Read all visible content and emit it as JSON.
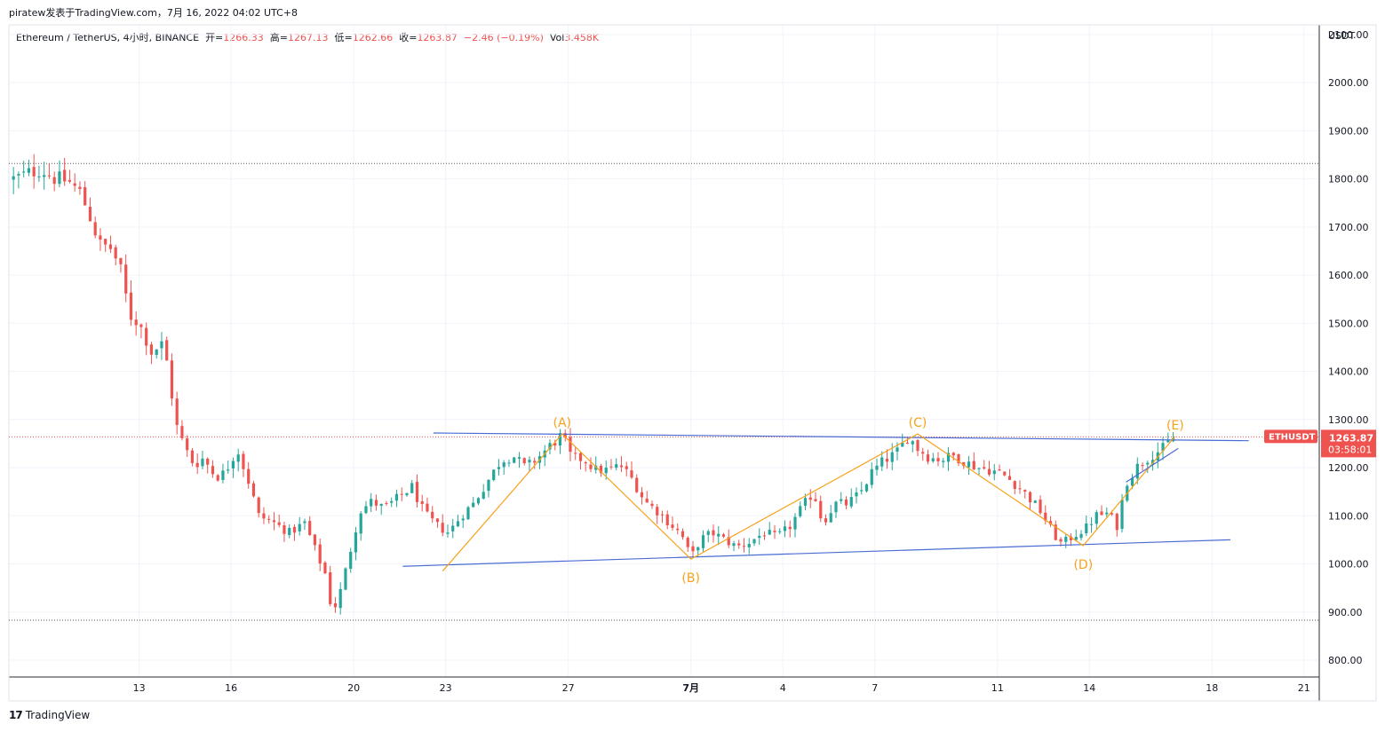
{
  "header": {
    "publish_line": "piratew发表于TradingView.com，7月 16, 2022 04:02 UTC+8"
  },
  "legend": {
    "symbol": "Ethereum / TetherUS, 4小时, BINANCE",
    "open_label": "开=",
    "open_value": "1266.33",
    "high_label": "高=",
    "high_value": "1267.13",
    "low_label": "低=",
    "low_value": "1262.66",
    "close_label": "收=",
    "close_value": "1263.87",
    "change": "−2.46 (−0.19%)",
    "vol_label": "Vol",
    "vol_value": "3.458K"
  },
  "footer": {
    "logo": "17",
    "brand": "TradingView"
  },
  "colors": {
    "up": "#26a69a",
    "down": "#ef5350",
    "wave": "#f7a21b",
    "trendline": "#4a6cd4",
    "grid": "#f0f3fa",
    "price_label_bg": "#ef5350"
  },
  "chart_data": {
    "type": "candlestick",
    "symbol": "ETHUSDT",
    "currency": "USDT",
    "y_ticks": [
      "2100.00",
      "2000.00",
      "1900.00",
      "1800.00",
      "1700.00",
      "1600.00",
      "1500.00",
      "1400.00",
      "1300.00",
      "1200.00",
      "1100.00",
      "1000.00",
      "900.00",
      "800.00"
    ],
    "y_tick_values": [
      2100,
      2000,
      1900,
      1800,
      1700,
      1600,
      1500,
      1400,
      1300,
      1200,
      1100,
      1000,
      900,
      800
    ],
    "ylim": [
      765,
      2120
    ],
    "x_ticks": [
      {
        "label": "13",
        "day": 13
      },
      {
        "label": "16",
        "day": 16
      },
      {
        "label": "20",
        "day": 20
      },
      {
        "label": "23",
        "day": 23
      },
      {
        "label": "27",
        "day": 27
      },
      {
        "label": "7月",
        "day": 31
      },
      {
        "label": "4",
        "day": 34
      },
      {
        "label": "7",
        "day": 37
      },
      {
        "label": "11",
        "day": 41
      },
      {
        "label": "14",
        "day": 44
      },
      {
        "label": "18",
        "day": 48
      },
      {
        "label": "21",
        "day": 51
      }
    ],
    "xlim_days": [
      8.75,
      51.5
    ],
    "last_price": "1263.87",
    "last_price_value": 1263.87,
    "countdown": "03:58:01",
    "horizontal_levels": [
      1832,
      883
    ],
    "price_path": [
      [
        8.9,
        1800
      ],
      [
        9.4,
        1812
      ],
      [
        9.8,
        1820
      ],
      [
        10.2,
        1802
      ],
      [
        10.7,
        1795
      ],
      [
        11.1,
        1770
      ],
      [
        11.4,
        1720
      ],
      [
        11.7,
        1665
      ],
      [
        12.1,
        1655
      ],
      [
        12.4,
        1610
      ],
      [
        12.7,
        1515
      ],
      [
        13.0,
        1500
      ],
      [
        13.4,
        1440
      ],
      [
        13.8,
        1460
      ],
      [
        14.0,
        1380
      ],
      [
        14.2,
        1290
      ],
      [
        14.5,
        1240
      ],
      [
        14.8,
        1205
      ],
      [
        15.1,
        1220
      ],
      [
        15.5,
        1180
      ],
      [
        15.8,
        1190
      ],
      [
        16.2,
        1240
      ],
      [
        16.6,
        1165
      ],
      [
        16.9,
        1100
      ],
      [
        17.4,
        1085
      ],
      [
        17.9,
        1065
      ],
      [
        18.4,
        1085
      ],
      [
        18.8,
        1020
      ],
      [
        19.1,
        975
      ],
      [
        19.3,
        895
      ],
      [
        19.6,
        950
      ],
      [
        19.9,
        1030
      ],
      [
        20.2,
        1110
      ],
      [
        20.6,
        1130
      ],
      [
        21.0,
        1115
      ],
      [
        21.5,
        1140
      ],
      [
        21.9,
        1160
      ],
      [
        22.3,
        1105
      ],
      [
        22.7,
        1080
      ],
      [
        23.1,
        1065
      ],
      [
        23.5,
        1100
      ],
      [
        23.9,
        1125
      ],
      [
        24.3,
        1165
      ],
      [
        24.8,
        1215
      ],
      [
        25.2,
        1225
      ],
      [
        25.6,
        1200
      ],
      [
        26.0,
        1220
      ],
      [
        26.4,
        1245
      ],
      [
        26.8,
        1268
      ],
      [
        27.1,
        1220
      ],
      [
        27.5,
        1218
      ],
      [
        27.9,
        1195
      ],
      [
        28.3,
        1195
      ],
      [
        28.7,
        1205
      ],
      [
        29.1,
        1175
      ],
      [
        29.5,
        1130
      ],
      [
        29.9,
        1110
      ],
      [
        30.3,
        1085
      ],
      [
        30.7,
        1060
      ],
      [
        31.0,
        1012
      ],
      [
        31.3,
        1050
      ],
      [
        31.7,
        1065
      ],
      [
        32.1,
        1050
      ],
      [
        32.5,
        1035
      ],
      [
        32.9,
        1045
      ],
      [
        33.4,
        1065
      ],
      [
        33.8,
        1055
      ],
      [
        34.2,
        1075
      ],
      [
        34.6,
        1115
      ],
      [
        35.0,
        1150
      ],
      [
        35.3,
        1085
      ],
      [
        35.7,
        1125
      ],
      [
        36.1,
        1125
      ],
      [
        36.5,
        1145
      ],
      [
        36.9,
        1190
      ],
      [
        37.3,
        1215
      ],
      [
        37.7,
        1230
      ],
      [
        38.1,
        1265
      ],
      [
        38.4,
        1240
      ],
      [
        38.8,
        1220
      ],
      [
        39.2,
        1218
      ],
      [
        39.6,
        1225
      ],
      [
        40.0,
        1210
      ],
      [
        40.4,
        1200
      ],
      [
        40.8,
        1195
      ],
      [
        41.2,
        1185
      ],
      [
        41.6,
        1165
      ],
      [
        42.0,
        1140
      ],
      [
        42.4,
        1110
      ],
      [
        42.8,
        1065
      ],
      [
        43.1,
        1040
      ],
      [
        43.5,
        1060
      ],
      [
        43.9,
        1075
      ],
      [
        44.2,
        1100
      ],
      [
        44.6,
        1105
      ],
      [
        44.9,
        1080
      ],
      [
        45.2,
        1170
      ],
      [
        45.6,
        1205
      ],
      [
        46.0,
        1225
      ],
      [
        46.4,
        1240
      ],
      [
        46.8,
        1265
      ]
    ],
    "wave_points": [
      {
        "label": "(A)",
        "day": 26.8,
        "price": 1270
      },
      {
        "label": "(B)",
        "day": 31.0,
        "price": 1010
      },
      {
        "label": "(C)",
        "day": 38.4,
        "price": 1270
      },
      {
        "label": "(D)",
        "day": 43.8,
        "price": 1038
      },
      {
        "label": "(E)",
        "day": 46.8,
        "price": 1265
      }
    ],
    "wave_path": [
      [
        22.9,
        985
      ],
      [
        26.8,
        1270
      ],
      [
        31.0,
        1010
      ],
      [
        38.4,
        1270
      ],
      [
        43.8,
        1038
      ],
      [
        46.8,
        1265
      ]
    ],
    "trendlines": [
      {
        "from": [
          22.6,
          1272
        ],
        "to": [
          49.2,
          1256
        ]
      },
      {
        "from": [
          21.6,
          995
        ],
        "to": [
          48.6,
          1050
        ]
      }
    ]
  }
}
